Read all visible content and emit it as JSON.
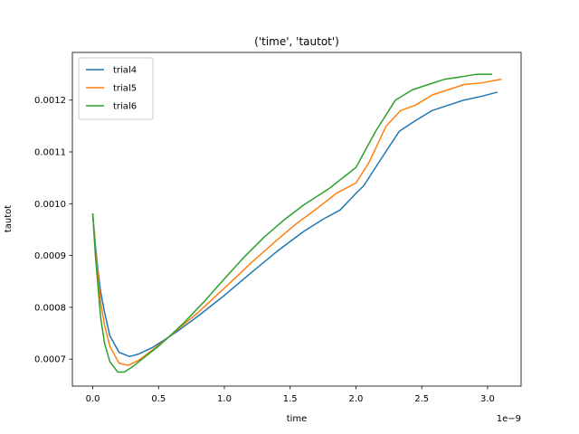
{
  "chart_data": {
    "type": "line",
    "title": "('time', 'tautot')",
    "xlabel": "time",
    "ylabel": "tautot",
    "x_offset_label": "1e−9",
    "xlim": [
      -0.155,
      3.255
    ],
    "ylim": [
      0.000648,
      0.001292
    ],
    "xticks": [
      0.0,
      0.5,
      1.0,
      1.5,
      2.0,
      2.5,
      3.0
    ],
    "xtick_labels": [
      "0.0",
      "0.5",
      "1.0",
      "1.5",
      "2.0",
      "2.5",
      "3.0"
    ],
    "yticks": [
      0.0007,
      0.0008,
      0.0009,
      0.001,
      0.0011,
      0.0012
    ],
    "ytick_labels": [
      "0.0007",
      "0.0008",
      "0.0009",
      "0.0010",
      "0.0011",
      "0.0012"
    ],
    "grid": false,
    "legend_position": "top-left",
    "series": [
      {
        "name": "trial4",
        "color": "#1f77b4",
        "x": [
          0.0,
          0.02,
          0.04,
          0.06,
          0.09,
          0.13,
          0.2,
          0.28,
          0.35,
          0.45,
          0.55,
          0.65,
          0.8,
          1.0,
          1.2,
          1.4,
          1.6,
          1.75,
          1.88,
          2.0,
          2.06,
          2.2,
          2.33,
          2.45,
          2.58,
          2.7,
          2.82,
          2.95,
          3.07
        ],
        "y": [
          0.00098,
          0.00092,
          0.00087,
          0.00083,
          0.00079,
          0.000745,
          0.000713,
          0.000705,
          0.00071,
          0.000722,
          0.000738,
          0.000755,
          0.000783,
          0.000823,
          0.000866,
          0.000908,
          0.000946,
          0.00097,
          0.000988,
          0.00102,
          0.001035,
          0.00109,
          0.00114,
          0.00116,
          0.00118,
          0.00119,
          0.0012,
          0.001207,
          0.001215
        ]
      },
      {
        "name": "trial5",
        "color": "#ff7f0e",
        "x": [
          0.0,
          0.02,
          0.04,
          0.06,
          0.09,
          0.13,
          0.2,
          0.27,
          0.35,
          0.45,
          0.55,
          0.65,
          0.8,
          1.0,
          1.2,
          1.4,
          1.55,
          1.7,
          1.85,
          2.0,
          2.1,
          2.23,
          2.34,
          2.45,
          2.58,
          2.7,
          2.82,
          2.95,
          3.1
        ],
        "y": [
          0.00098,
          0.00091,
          0.00086,
          0.00081,
          0.000765,
          0.000725,
          0.000692,
          0.000688,
          0.000698,
          0.000717,
          0.000737,
          0.000758,
          0.00079,
          0.000837,
          0.000885,
          0.00093,
          0.000962,
          0.00099,
          0.00102,
          0.00104,
          0.00108,
          0.00115,
          0.00118,
          0.00119,
          0.00121,
          0.00122,
          0.00123,
          0.001233,
          0.00124
        ]
      },
      {
        "name": "trial6",
        "color": "#2ca02c",
        "x": [
          0.0,
          0.02,
          0.04,
          0.06,
          0.09,
          0.13,
          0.19,
          0.24,
          0.3,
          0.4,
          0.5,
          0.6,
          0.7,
          0.85,
          1.0,
          1.15,
          1.3,
          1.45,
          1.6,
          1.8,
          2.0,
          2.15,
          2.3,
          2.43,
          2.55,
          2.67,
          2.8,
          2.92,
          3.03
        ],
        "y": [
          0.00098,
          0.0009,
          0.00084,
          0.00078,
          0.00073,
          0.000695,
          0.000675,
          0.000675,
          0.000685,
          0.000705,
          0.000725,
          0.000748,
          0.000772,
          0.000812,
          0.000855,
          0.000897,
          0.000935,
          0.000968,
          0.000997,
          0.00103,
          0.00107,
          0.00114,
          0.0012,
          0.00122,
          0.00123,
          0.00124,
          0.001245,
          0.00125,
          0.00125
        ]
      }
    ]
  }
}
